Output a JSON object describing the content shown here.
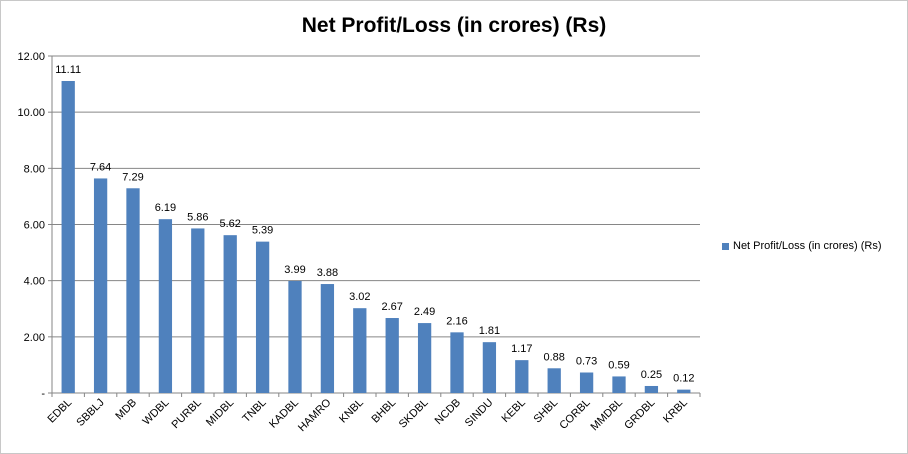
{
  "chart_data": {
    "type": "bar",
    "title": "Net Profit/Loss (in crores) (Rs)",
    "categories": [
      "EDBL",
      "SBBLJ",
      "MDB",
      "WDBL",
      "PURBL",
      "MIDBL",
      "TNBL",
      "KADBL",
      "HAMRO",
      "KNBL",
      "BHBL",
      "SKDBL",
      "NCDB",
      "SINDU",
      "KEBL",
      "SHBL",
      "CORBL",
      "MMDBL",
      "GRDBL",
      "KRBL"
    ],
    "series": [
      {
        "name": "Net Profit/Loss (in crores) (Rs)",
        "values": [
          11.11,
          7.64,
          7.29,
          6.19,
          5.86,
          5.62,
          5.39,
          3.99,
          3.88,
          3.02,
          2.67,
          2.49,
          2.16,
          1.81,
          1.17,
          0.88,
          0.73,
          0.59,
          0.25,
          0.12
        ],
        "labels": [
          "11.11",
          "7.64",
          "7.29",
          "6.19",
          "5.86",
          "5.62",
          "5.39",
          "3.99",
          "3.88",
          "3.02",
          "2.67",
          "2.49",
          "2.16",
          "1.81",
          "1.17",
          "0.88",
          "0.73",
          "0.59",
          "0.25",
          "0.12"
        ],
        "color": "#4f81bd"
      }
    ],
    "ylim": [
      0,
      12
    ],
    "yticks": [
      0,
      2,
      4,
      6,
      8,
      10,
      12
    ],
    "ytick_labels": [
      "-",
      "2.00",
      "4.00",
      "6.00",
      "8.00",
      "10.00",
      "12.00"
    ],
    "grid": true,
    "gridline_color": "#868686",
    "legend_position": "right",
    "xlabel": "",
    "ylabel": ""
  }
}
